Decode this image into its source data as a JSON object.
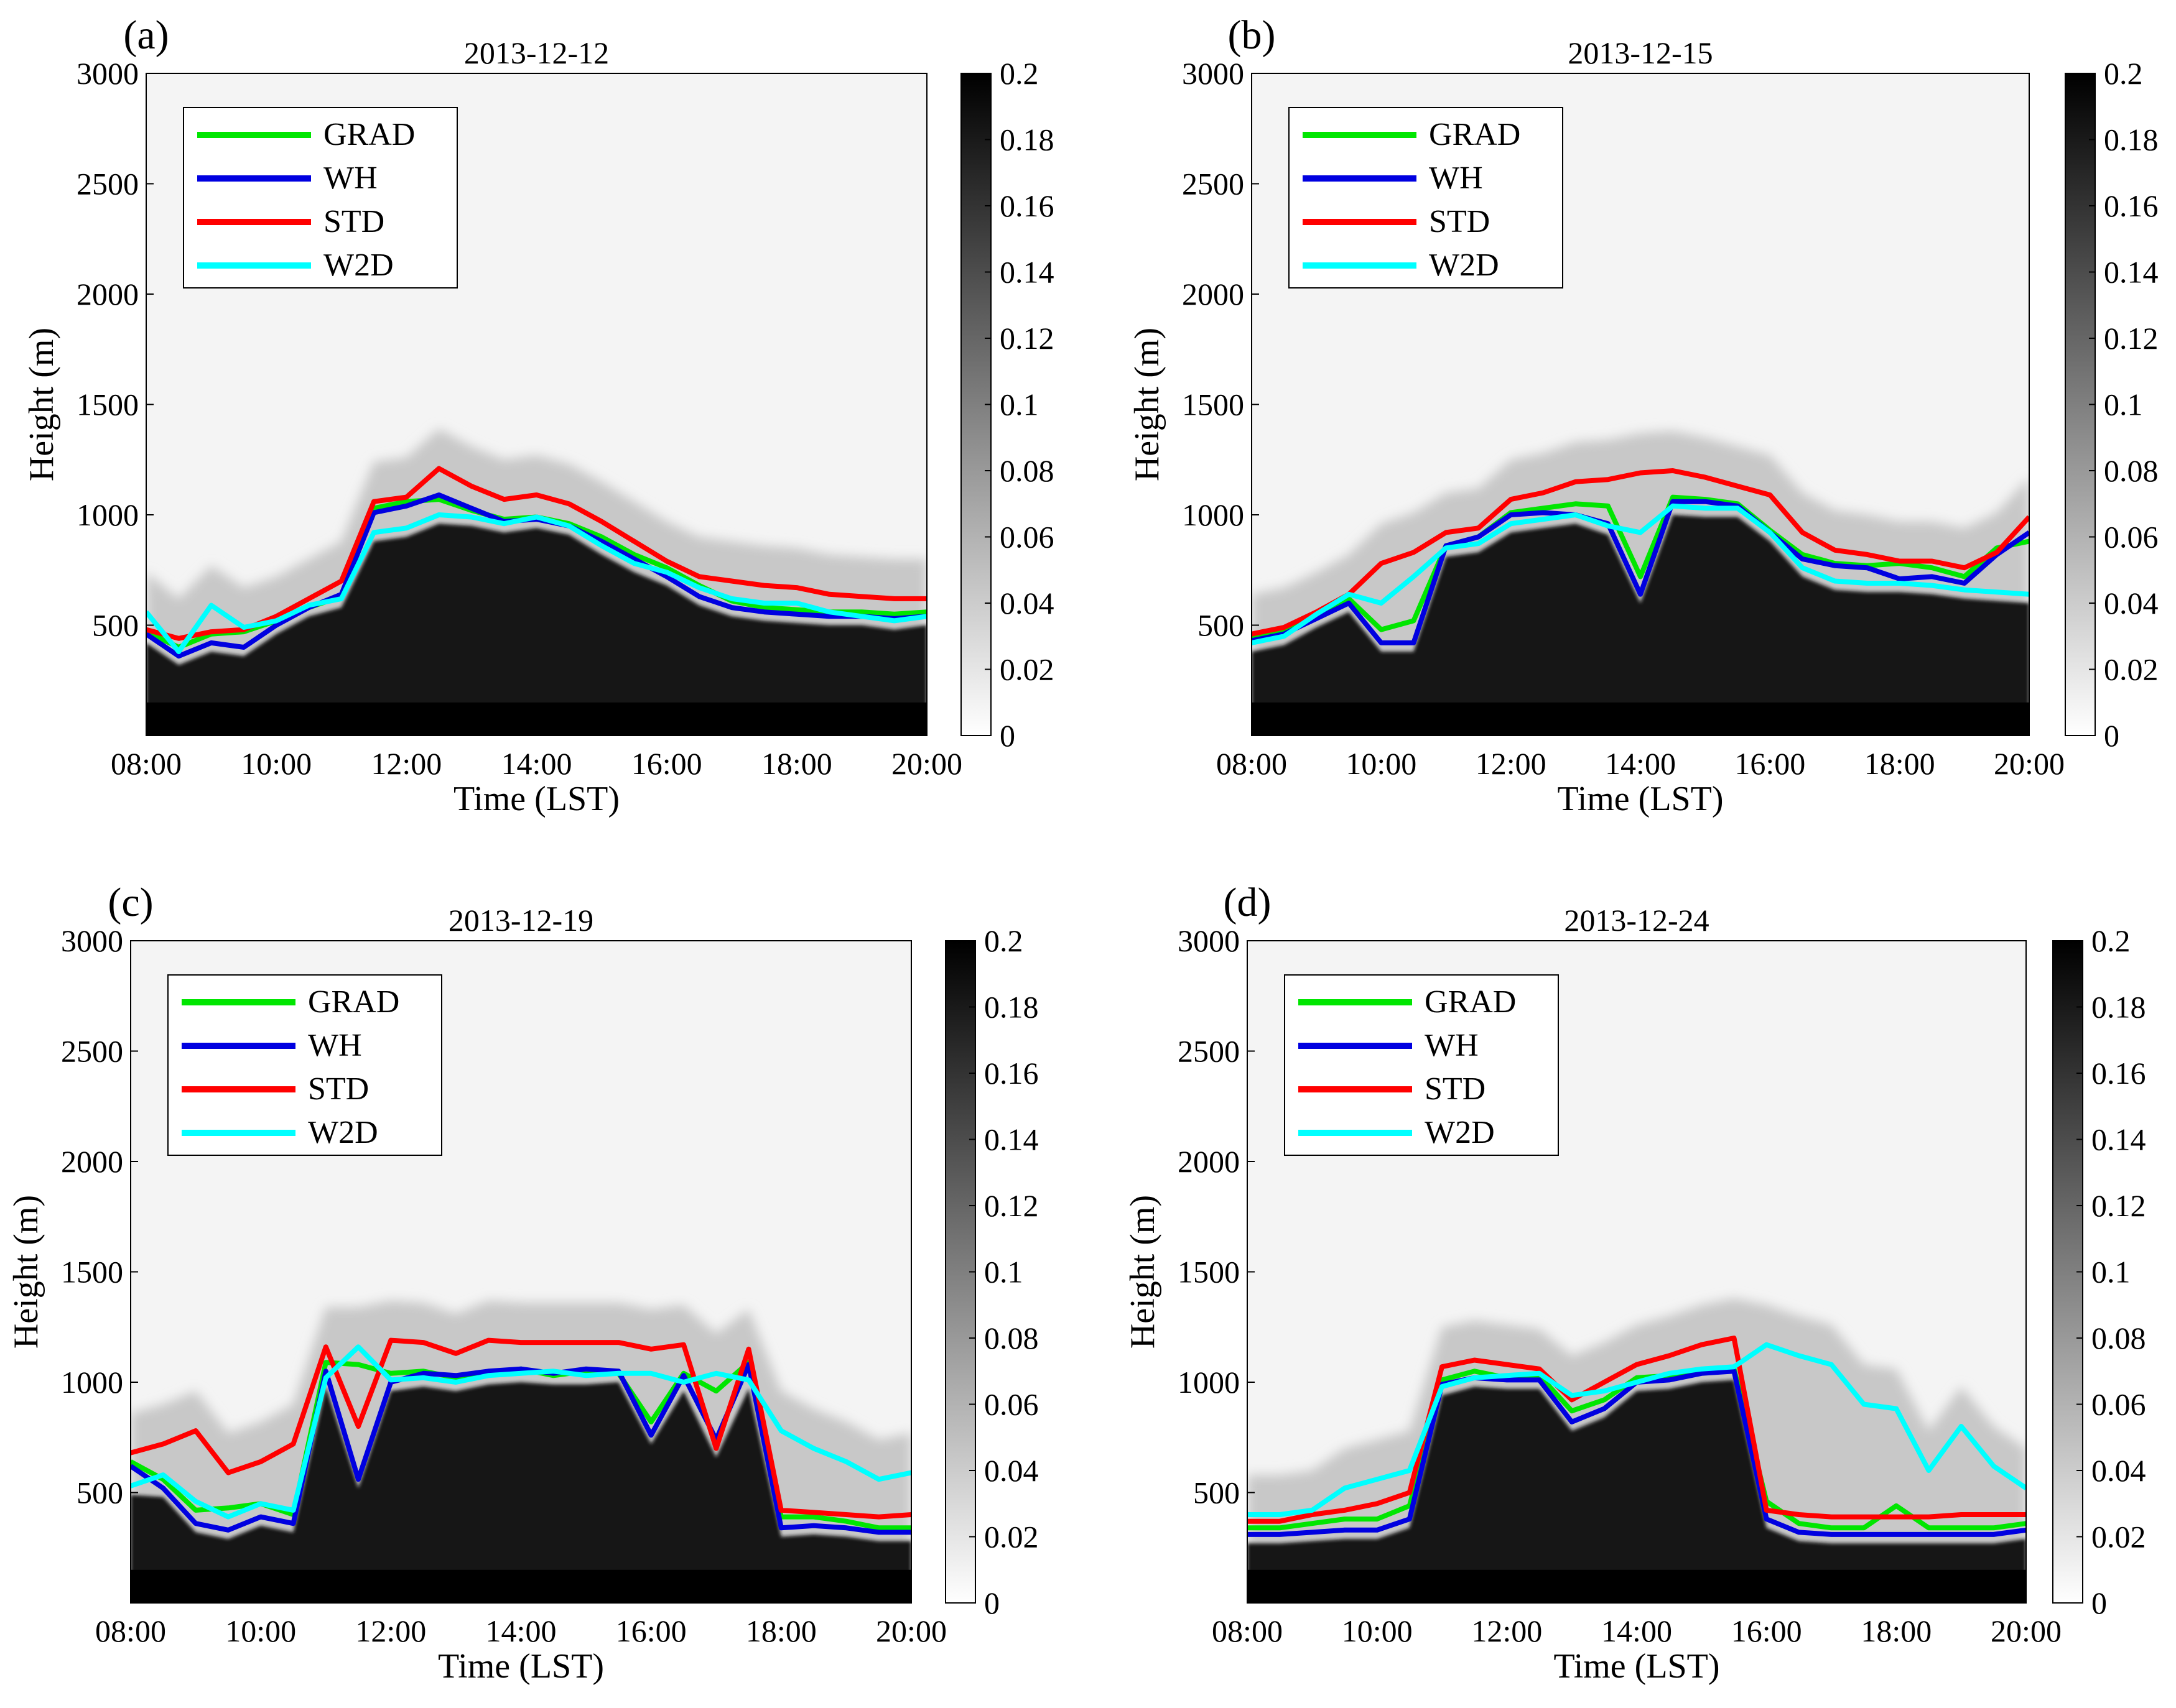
{
  "figure": {
    "series_colors": {
      "GRAD": "#00e600",
      "WH": "#0000e0",
      "STD": "#ff0000",
      "W2D": "#00ffff"
    },
    "colormap": "gray_reversed"
  },
  "chart_data": [
    {
      "type": "line",
      "panel_label": "(a)",
      "title": "2013-12-12",
      "xlabel": "Time (LST)",
      "ylabel": "Height (m)",
      "x_tick_labels": [
        "08:00",
        "10:00",
        "12:00",
        "14:00",
        "16:00",
        "18:00",
        "20:00"
      ],
      "xlim": [
        8,
        20
      ],
      "ylim": [
        0,
        3000
      ],
      "y_ticks": [
        500,
        1000,
        1500,
        2000,
        2500,
        3000
      ],
      "colorbar": {
        "range": [
          0,
          0.2
        ],
        "ticks": [
          "0",
          "0.02",
          "0.04",
          "0.06",
          "0.08",
          "0.1",
          "0.12",
          "0.14",
          "0.16",
          "0.18",
          "0.2"
        ]
      },
      "legend": {
        "position": "top-left",
        "entries": [
          "GRAD",
          "WH",
          "STD",
          "W2D"
        ]
      },
      "x": [
        8,
        8.5,
        9,
        9.5,
        10,
        10.5,
        11,
        11.5,
        12,
        12.5,
        13,
        13.5,
        14,
        14.5,
        15,
        15.5,
        16,
        16.5,
        17,
        17.5,
        18,
        18.5,
        19,
        19.5,
        20
      ],
      "series": [
        {
          "name": "GRAD",
          "values": [
            470,
            400,
            460,
            470,
            520,
            580,
            630,
            1030,
            1060,
            1070,
            1020,
            980,
            990,
            960,
            900,
            820,
            760,
            680,
            610,
            580,
            570,
            560,
            560,
            550,
            560
          ]
        },
        {
          "name": "WH",
          "values": [
            460,
            360,
            420,
            400,
            500,
            580,
            640,
            1010,
            1040,
            1090,
            1030,
            970,
            980,
            950,
            880,
            800,
            720,
            630,
            580,
            560,
            550,
            540,
            540,
            530,
            540
          ]
        },
        {
          "name": "STD",
          "values": [
            480,
            440,
            470,
            480,
            540,
            620,
            700,
            1060,
            1080,
            1210,
            1130,
            1070,
            1090,
            1050,
            970,
            880,
            790,
            720,
            700,
            680,
            670,
            640,
            630,
            620,
            620
          ]
        },
        {
          "name": "W2D",
          "values": [
            560,
            380,
            590,
            490,
            520,
            590,
            620,
            920,
            940,
            1000,
            990,
            960,
            990,
            950,
            860,
            780,
            740,
            670,
            620,
            600,
            600,
            560,
            540,
            520,
            540
          ]
        }
      ]
    },
    {
      "type": "line",
      "panel_label": "(b)",
      "title": "2013-12-15",
      "xlabel": "Time (LST)",
      "ylabel": "Height (m)",
      "x_tick_labels": [
        "08:00",
        "10:00",
        "12:00",
        "14:00",
        "16:00",
        "18:00",
        "20:00"
      ],
      "xlim": [
        8,
        20
      ],
      "ylim": [
        0,
        3000
      ],
      "y_ticks": [
        500,
        1000,
        1500,
        2000,
        2500,
        3000
      ],
      "colorbar": {
        "range": [
          0,
          0.2
        ],
        "ticks": [
          "0",
          "0.02",
          "0.04",
          "0.06",
          "0.08",
          "0.1",
          "0.12",
          "0.14",
          "0.16",
          "0.18",
          "0.2"
        ]
      },
      "legend": {
        "position": "top-left",
        "entries": [
          "GRAD",
          "WH",
          "STD",
          "W2D"
        ]
      },
      "x": [
        8,
        8.5,
        9,
        9.5,
        10,
        10.5,
        11,
        11.5,
        12,
        12.5,
        13,
        13.5,
        14,
        14.5,
        15,
        15.5,
        16,
        16.5,
        17,
        17.5,
        18,
        18.5,
        19,
        19.5,
        20
      ],
      "series": [
        {
          "name": "GRAD",
          "values": [
            440,
            470,
            540,
            620,
            480,
            520,
            860,
            900,
            1010,
            1030,
            1050,
            1040,
            720,
            1080,
            1070,
            1050,
            930,
            820,
            780,
            770,
            780,
            760,
            720,
            850,
            880
          ]
        },
        {
          "name": "WH",
          "values": [
            430,
            460,
            530,
            600,
            420,
            420,
            860,
            900,
            1000,
            1010,
            1000,
            960,
            640,
            1060,
            1060,
            1040,
            920,
            800,
            770,
            760,
            710,
            720,
            690,
            820,
            920
          ]
        },
        {
          "name": "STD",
          "values": [
            460,
            490,
            560,
            640,
            780,
            830,
            920,
            940,
            1070,
            1100,
            1150,
            1160,
            1190,
            1200,
            1170,
            1130,
            1090,
            920,
            840,
            820,
            790,
            790,
            760,
            830,
            990
          ]
        },
        {
          "name": "W2D",
          "values": [
            420,
            450,
            550,
            640,
            600,
            720,
            850,
            870,
            960,
            980,
            1000,
            950,
            920,
            1040,
            1030,
            1030,
            920,
            760,
            700,
            690,
            690,
            680,
            660,
            650,
            640
          ]
        }
      ]
    },
    {
      "type": "line",
      "panel_label": "(c)",
      "title": "2013-12-19",
      "xlabel": "Time (LST)",
      "ylabel": "Height (m)",
      "x_tick_labels": [
        "08:00",
        "10:00",
        "12:00",
        "14:00",
        "16:00",
        "18:00",
        "20:00"
      ],
      "xlim": [
        8,
        20
      ],
      "ylim": [
        0,
        3000
      ],
      "y_ticks": [
        500,
        1000,
        1500,
        2000,
        2500,
        3000
      ],
      "colorbar": {
        "range": [
          0,
          0.2
        ],
        "ticks": [
          "0",
          "0.02",
          "0.04",
          "0.06",
          "0.08",
          "0.1",
          "0.12",
          "0.14",
          "0.16",
          "0.18",
          "0.2"
        ]
      },
      "legend": {
        "position": "top-left",
        "entries": [
          "GRAD",
          "WH",
          "STD",
          "W2D"
        ]
      },
      "x": [
        8,
        8.5,
        9,
        9.5,
        10,
        10.5,
        11,
        11.5,
        12,
        12.5,
        13,
        13.5,
        14,
        14.5,
        15,
        15.5,
        16,
        16.5,
        17,
        17.5,
        18,
        18.5,
        19,
        19.5,
        20
      ],
      "series": [
        {
          "name": "GRAD",
          "values": [
            640,
            560,
            420,
            430,
            450,
            400,
            1090,
            1080,
            1040,
            1050,
            1020,
            1040,
            1060,
            1030,
            1050,
            1040,
            820,
            1040,
            960,
            1090,
            390,
            390,
            370,
            340,
            340
          ]
        },
        {
          "name": "WH",
          "values": [
            620,
            520,
            360,
            330,
            390,
            360,
            1050,
            560,
            1000,
            1040,
            1030,
            1050,
            1060,
            1040,
            1060,
            1050,
            760,
            1030,
            740,
            1080,
            340,
            350,
            340,
            320,
            320
          ]
        },
        {
          "name": "STD",
          "values": [
            680,
            720,
            780,
            590,
            640,
            720,
            1160,
            800,
            1190,
            1180,
            1130,
            1190,
            1180,
            1180,
            1180,
            1180,
            1150,
            1170,
            700,
            1150,
            420,
            410,
            400,
            390,
            400
          ]
        },
        {
          "name": "W2D",
          "values": [
            530,
            580,
            460,
            390,
            450,
            420,
            1020,
            1160,
            1010,
            1020,
            1000,
            1030,
            1040,
            1050,
            1030,
            1040,
            1040,
            1000,
            1040,
            1010,
            780,
            700,
            640,
            560,
            590
          ]
        }
      ]
    },
    {
      "type": "line",
      "panel_label": "(d)",
      "title": "2013-12-24",
      "xlabel": "Time (LST)",
      "ylabel": "Height (m)",
      "x_tick_labels": [
        "08:00",
        "10:00",
        "12:00",
        "14:00",
        "16:00",
        "18:00",
        "20:00"
      ],
      "xlim": [
        8,
        20
      ],
      "ylim": [
        0,
        3000
      ],
      "y_ticks": [
        500,
        1000,
        1500,
        2000,
        2500,
        3000
      ],
      "colorbar": {
        "range": [
          0,
          0.2
        ],
        "ticks": [
          "0",
          "0.02",
          "0.04",
          "0.06",
          "0.08",
          "0.1",
          "0.12",
          "0.14",
          "0.16",
          "0.18",
          "0.2"
        ]
      },
      "legend": {
        "position": "top-left",
        "entries": [
          "GRAD",
          "WH",
          "STD",
          "W2D"
        ]
      },
      "x": [
        8,
        8.5,
        9,
        9.5,
        10,
        10.5,
        11,
        11.5,
        12,
        12.5,
        13,
        13.5,
        14,
        14.5,
        15,
        15.5,
        16,
        16.5,
        17,
        17.5,
        18,
        18.5,
        19,
        19.5,
        20
      ],
      "series": [
        {
          "name": "GRAD",
          "values": [
            340,
            340,
            360,
            380,
            380,
            440,
            1010,
            1050,
            1020,
            1030,
            870,
            920,
            1020,
            1030,
            1050,
            1060,
            460,
            360,
            340,
            340,
            440,
            340,
            340,
            340,
            360
          ]
        },
        {
          "name": "WH",
          "values": [
            310,
            310,
            320,
            330,
            330,
            380,
            990,
            1020,
            1010,
            1010,
            820,
            880,
            1000,
            1010,
            1040,
            1050,
            380,
            320,
            310,
            310,
            310,
            310,
            310,
            310,
            330
          ]
        },
        {
          "name": "STD",
          "values": [
            370,
            370,
            400,
            420,
            450,
            500,
            1070,
            1100,
            1080,
            1060,
            920,
            1000,
            1080,
            1120,
            1170,
            1200,
            420,
            400,
            390,
            390,
            390,
            390,
            400,
            400,
            400
          ]
        },
        {
          "name": "W2D",
          "values": [
            400,
            400,
            420,
            520,
            560,
            600,
            980,
            1020,
            1030,
            1040,
            940,
            960,
            1000,
            1040,
            1060,
            1070,
            1170,
            1120,
            1080,
            900,
            880,
            600,
            800,
            620,
            520
          ]
        }
      ]
    }
  ]
}
